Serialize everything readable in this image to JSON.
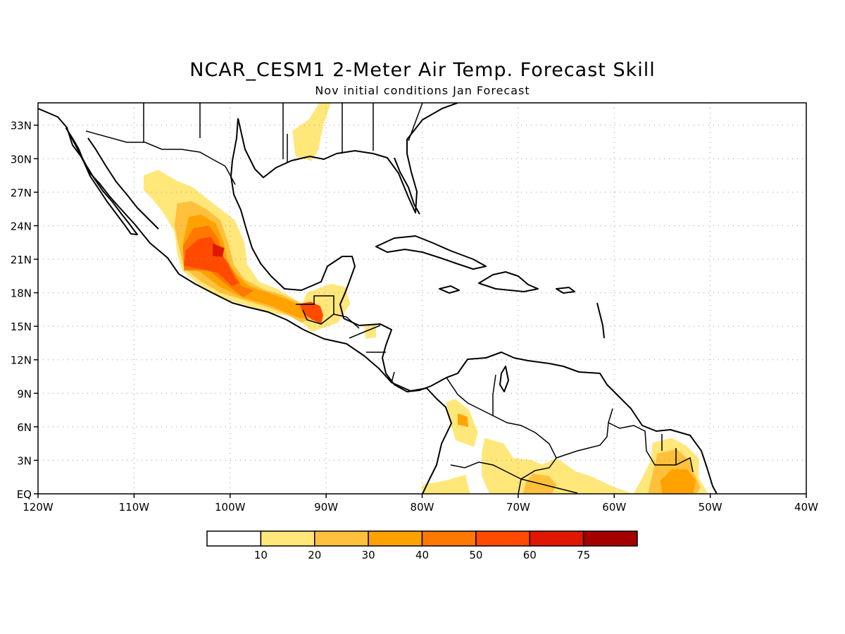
{
  "map": {
    "title": "NCAR_CESM1 2-Meter Air Temp. Forecast Skill",
    "subtitle": "Nov initial conditions  Jan Forecast",
    "region": {
      "lon_min": -120,
      "lon_max": -40,
      "lat_min": 0,
      "lat_max": 35
    },
    "lat_ticks": [
      {
        "value": 33,
        "label": "33N"
      },
      {
        "value": 30,
        "label": "30N"
      },
      {
        "value": 27,
        "label": "27N"
      },
      {
        "value": 24,
        "label": "24N"
      },
      {
        "value": 21,
        "label": "21N"
      },
      {
        "value": 18,
        "label": "18N"
      },
      {
        "value": 15,
        "label": "15N"
      },
      {
        "value": 12,
        "label": "12N"
      },
      {
        "value": 9,
        "label": "9N"
      },
      {
        "value": 6,
        "label": "6N"
      },
      {
        "value": 3,
        "label": "3N"
      },
      {
        "value": 0,
        "label": "EQ"
      }
    ],
    "lon_ticks": [
      {
        "value": -120,
        "label": "120W"
      },
      {
        "value": -110,
        "label": "110W"
      },
      {
        "value": -100,
        "label": "100W"
      },
      {
        "value": -90,
        "label": "90W"
      },
      {
        "value": -80,
        "label": "80W"
      },
      {
        "value": -70,
        "label": "70W"
      },
      {
        "value": -60,
        "label": "60W"
      },
      {
        "value": -50,
        "label": "50W"
      },
      {
        "value": -40,
        "label": "40W"
      }
    ],
    "colorbar": {
      "colors": [
        "#ffffff",
        "#ffe77a",
        "#ffc03c",
        "#ffa200",
        "#ff7800",
        "#ff4a00",
        "#e01800",
        "#a50000"
      ],
      "labels": [
        "10",
        "20",
        "30",
        "40",
        "50",
        "60",
        "75"
      ]
    },
    "skill_regions": [
      {
        "id": "mexico-west",
        "level": 10,
        "points": [
          [
            -109,
            28.5
          ],
          [
            -107.5,
            29
          ],
          [
            -105.5,
            28
          ],
          [
            -104,
            27.5
          ],
          [
            -102.5,
            26.5
          ],
          [
            -101,
            25.5
          ],
          [
            -99.5,
            24.5
          ],
          [
            -98.5,
            22.5
          ],
          [
            -98.2,
            20.5
          ],
          [
            -97,
            19
          ],
          [
            -95,
            18.3
          ],
          [
            -94,
            17.8
          ],
          [
            -92.5,
            17
          ],
          [
            -92,
            18
          ],
          [
            -89.5,
            18.8
          ],
          [
            -88,
            18.5
          ],
          [
            -87.5,
            17
          ],
          [
            -88.8,
            15.3
          ],
          [
            -91.5,
            14.5
          ],
          [
            -93,
            15.8
          ],
          [
            -96,
            16.2
          ],
          [
            -98,
            16.8
          ],
          [
            -101,
            17.5
          ],
          [
            -103,
            18.5
          ],
          [
            -105,
            20
          ],
          [
            -105.5,
            21.5
          ],
          [
            -105.8,
            23.5
          ],
          [
            -107,
            25.2
          ],
          [
            -108,
            26.3
          ],
          [
            -109,
            27.2
          ]
        ]
      },
      {
        "id": "mexico-west",
        "level": 20,
        "points": [
          [
            -105.5,
            26
          ],
          [
            -104,
            26.2
          ],
          [
            -102.5,
            25.5
          ],
          [
            -101,
            24.5
          ],
          [
            -100.2,
            22.5
          ],
          [
            -99.6,
            20.5
          ],
          [
            -98.5,
            19.2
          ],
          [
            -96.5,
            18.3
          ],
          [
            -94.5,
            17.8
          ],
          [
            -92.5,
            17
          ],
          [
            -91.7,
            16.5
          ],
          [
            -91.5,
            15.8
          ],
          [
            -92.5,
            15.3
          ],
          [
            -94,
            16
          ],
          [
            -96,
            16.7
          ],
          [
            -98,
            17.2
          ],
          [
            -101,
            18
          ],
          [
            -103,
            19
          ],
          [
            -104.8,
            20.2
          ],
          [
            -105.3,
            22
          ],
          [
            -105.8,
            24
          ]
        ]
      },
      {
        "id": "mexico-west",
        "level": 30,
        "points": [
          [
            -104.3,
            24.8
          ],
          [
            -103,
            25
          ],
          [
            -101.5,
            24.2
          ],
          [
            -100.7,
            22.6
          ],
          [
            -100.3,
            21
          ],
          [
            -99.5,
            19.8
          ],
          [
            -98,
            18.6
          ],
          [
            -96,
            18
          ],
          [
            -94,
            17.4
          ],
          [
            -92.2,
            16.6
          ],
          [
            -91.8,
            15.6
          ],
          [
            -93,
            15.8
          ],
          [
            -96,
            16.9
          ],
          [
            -98.5,
            17.5
          ],
          [
            -101,
            18.5
          ],
          [
            -103,
            19.8
          ],
          [
            -104.8,
            20.5
          ],
          [
            -104.9,
            22.5
          ]
        ]
      },
      {
        "id": "mexico-west",
        "level": 40,
        "points": [
          [
            -103.8,
            23.8
          ],
          [
            -102.2,
            24
          ],
          [
            -101.2,
            22.8
          ],
          [
            -100.8,
            21.2
          ],
          [
            -99.6,
            19.8
          ],
          [
            -98.8,
            18.6
          ],
          [
            -97.5,
            18.2
          ],
          [
            -98.6,
            17.6
          ],
          [
            -100.5,
            18.8
          ],
          [
            -102.2,
            20
          ],
          [
            -104.8,
            20
          ],
          [
            -104.9,
            22.2
          ]
        ]
      },
      {
        "id": "mexico-west",
        "level": 50,
        "points": [
          [
            -103.3,
            22.8
          ],
          [
            -102,
            23
          ],
          [
            -101,
            21.6
          ],
          [
            -100.2,
            20.6
          ],
          [
            -99.5,
            19.3
          ],
          [
            -99,
            18.9
          ],
          [
            -99.8,
            18.6
          ],
          [
            -101.3,
            19.8
          ],
          [
            -103.5,
            20.2
          ],
          [
            -104.8,
            20.4
          ],
          [
            -104.6,
            21.8
          ]
        ]
      },
      {
        "id": "mexico-west",
        "level": 60,
        "points": [
          [
            -101.8,
            22.4
          ],
          [
            -100.6,
            22
          ],
          [
            -100.8,
            21.2
          ],
          [
            -101.8,
            21.3
          ]
        ]
      },
      {
        "id": "guatemala",
        "level": 50,
        "points": [
          [
            -92.8,
            17
          ],
          [
            -91.6,
            17.2
          ],
          [
            -90.6,
            16.8
          ],
          [
            -90.3,
            16
          ],
          [
            -90.5,
            15.2
          ],
          [
            -91.5,
            15.6
          ],
          [
            -92.4,
            16.2
          ]
        ]
      },
      {
        "id": "louisiana",
        "level": 10,
        "points": [
          [
            -93.5,
            32.5
          ],
          [
            -91.8,
            33.5
          ],
          [
            -90.7,
            35
          ],
          [
            -89.5,
            35
          ],
          [
            -90.3,
            33
          ],
          [
            -90.8,
            30.8
          ],
          [
            -91.5,
            29.8
          ],
          [
            -93.2,
            30.2
          ]
        ]
      },
      {
        "id": "honduras",
        "level": 10,
        "points": [
          [
            -86,
            15.1
          ],
          [
            -84.8,
            15.2
          ],
          [
            -84.8,
            14
          ],
          [
            -85.9,
            13.9
          ]
        ]
      },
      {
        "id": "colombia",
        "level": 10,
        "points": [
          [
            -77.5,
            8.2
          ],
          [
            -76.6,
            8.5
          ],
          [
            -75.1,
            7.5
          ],
          [
            -74.2,
            5.5
          ],
          [
            -74.6,
            4.2
          ],
          [
            -76.5,
            4.8
          ],
          [
            -77.1,
            6.5
          ]
        ]
      },
      {
        "id": "colombia",
        "level": 30,
        "points": [
          [
            -76.3,
            7.2
          ],
          [
            -75.3,
            6.9
          ],
          [
            -75.2,
            6
          ],
          [
            -76.3,
            6.2
          ]
        ]
      },
      {
        "id": "amazon",
        "level": 10,
        "points": [
          [
            -80,
            0.8
          ],
          [
            -77.5,
            1.2
          ],
          [
            -75.5,
            1.7
          ],
          [
            -75,
            0
          ],
          [
            -80,
            0
          ]
        ]
      },
      {
        "id": "amazon",
        "level": 10,
        "points": [
          [
            -73.5,
            5
          ],
          [
            -71.5,
            4.5
          ],
          [
            -70.5,
            3.2
          ],
          [
            -68.5,
            3
          ],
          [
            -67.5,
            2.6
          ],
          [
            -66,
            3.2
          ],
          [
            -64,
            2
          ],
          [
            -62.5,
            1.6
          ],
          [
            -60,
            0.6
          ],
          [
            -58,
            0
          ],
          [
            -73,
            0
          ],
          [
            -73.8,
            1.6
          ],
          [
            -73.8,
            3.6
          ]
        ]
      },
      {
        "id": "amazon",
        "level": 20,
        "points": [
          [
            -68.5,
            1.8
          ],
          [
            -66.8,
            1.6
          ],
          [
            -66,
            0.8
          ],
          [
            -66.5,
            0
          ],
          [
            -69.5,
            0
          ],
          [
            -69.2,
            1
          ]
        ]
      },
      {
        "id": "guiana",
        "level": 10,
        "points": [
          [
            -56,
            4.6
          ],
          [
            -54,
            5
          ],
          [
            -52.5,
            4.3
          ],
          [
            -51.2,
            3.2
          ],
          [
            -51.2,
            1.4
          ],
          [
            -50.2,
            0
          ],
          [
            -58,
            0
          ],
          [
            -57.2,
            1.2
          ],
          [
            -56.2,
            3
          ]
        ]
      },
      {
        "id": "guiana",
        "level": 20,
        "points": [
          [
            -55.5,
            3.6
          ],
          [
            -53.5,
            4
          ],
          [
            -52.2,
            3
          ],
          [
            -51.8,
            2
          ],
          [
            -51,
            0.6
          ],
          [
            -51.4,
            0
          ],
          [
            -56.5,
            0
          ],
          [
            -56,
            1.8
          ]
        ]
      },
      {
        "id": "guiana",
        "level": 30,
        "points": [
          [
            -54,
            2.2
          ],
          [
            -52.4,
            2.2
          ],
          [
            -51.5,
            1.2
          ],
          [
            -51.8,
            0
          ],
          [
            -55,
            0
          ],
          [
            -55.2,
            1.2
          ]
        ]
      }
    ]
  }
}
